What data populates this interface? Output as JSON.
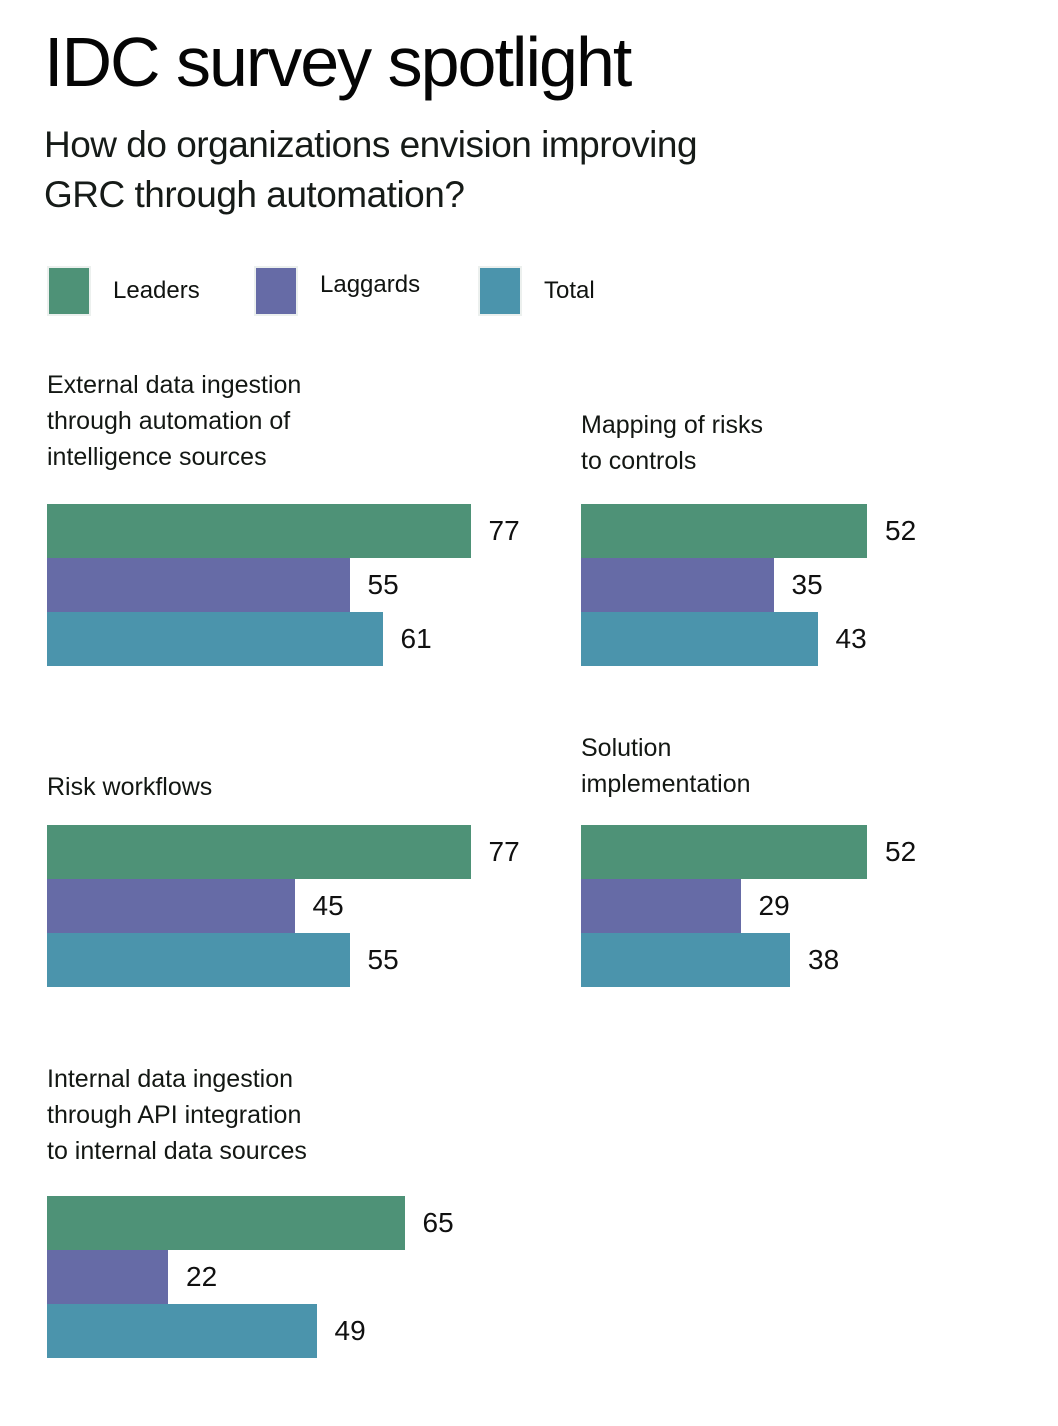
{
  "header": {
    "title": "IDC survey spotlight",
    "subtitle": "How do organizations envision improving\nGRC through automation?"
  },
  "chart_data": {
    "type": "bar",
    "orientation": "horizontal",
    "grid": false,
    "legend_position": "top",
    "xlim": [
      0,
      100
    ],
    "series": [
      {
        "name": "Leaders",
        "color": "#4e9277"
      },
      {
        "name": "Laggards",
        "color": "#666ba6"
      },
      {
        "name": "Total",
        "color": "#4b94ac"
      }
    ],
    "groups": [
      {
        "category": "External data ingestion\nthrough automation of\nintelligence sources",
        "values": [
          77,
          55,
          61
        ]
      },
      {
        "category": "Mapping of risks\nto controls",
        "values": [
          52,
          35,
          43
        ]
      },
      {
        "category": "Risk workflows",
        "values": [
          77,
          45,
          55
        ]
      },
      {
        "category": "Solution\nimplementation",
        "values": [
          52,
          29,
          38
        ]
      },
      {
        "category": "Internal data ingestion\nthrough API integration\nto internal data sources",
        "values": [
          65,
          22,
          49
        ]
      }
    ]
  }
}
